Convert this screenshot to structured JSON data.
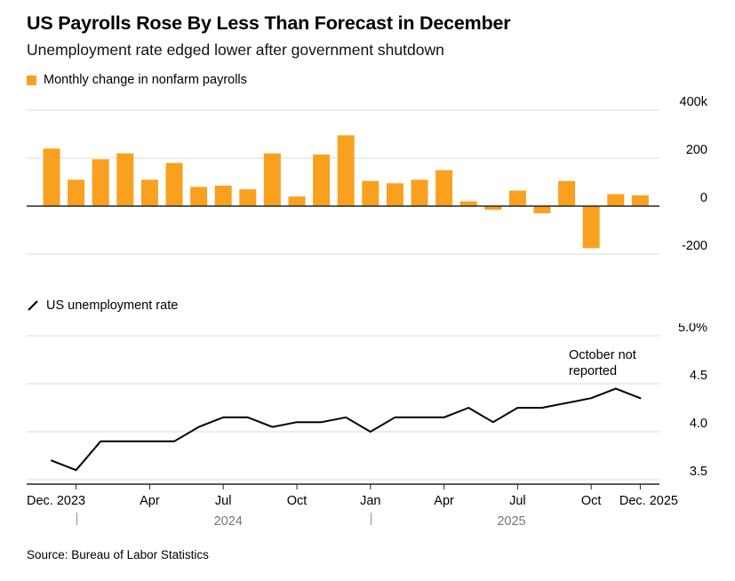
{
  "title": "US Payrolls Rose By Less Than Forecast in December",
  "subtitle": "Unemployment rate edged lower after government shutdown",
  "legend": {
    "payrolls": "Monthly change in nonfarm payrolls",
    "unemployment": "US unemployment rate"
  },
  "annotation": {
    "line1": "October not",
    "line2": "reported"
  },
  "source": "Source: Bureau of Labor Statistics",
  "colors": {
    "bar_orange": "#F9A11E",
    "line_black": "#000000",
    "grid": "#DBDBDB",
    "axis": "#262626",
    "year_gray": "#757575"
  },
  "chart_data": [
    {
      "type": "bar",
      "title": "Monthly change in nonfarm payrolls",
      "unit": "thousands of jobs",
      "categories": [
        "Dec 2023",
        "Jan 2024",
        "Feb 2024",
        "Mar 2024",
        "Apr 2024",
        "May 2024",
        "Jun 2024",
        "Jul 2024",
        "Aug 2024",
        "Sep 2024",
        "Oct 2024",
        "Nov 2024",
        "Dec 2024",
        "Jan 2025",
        "Feb 2025",
        "Mar 2025",
        "Apr 2025",
        "May 2025",
        "Jun 2025",
        "Jul 2025",
        "Aug 2025",
        "Sep 2025",
        "Oct 2025",
        "Nov 2025",
        "Dec 2025"
      ],
      "values": [
        240,
        110,
        195,
        220,
        110,
        180,
        80,
        85,
        70,
        220,
        40,
        215,
        295,
        105,
        95,
        110,
        150,
        20,
        -15,
        65,
        -30,
        105,
        -175,
        50,
        45
      ],
      "yticks": [
        {
          "value": 400,
          "label": "400k"
        },
        {
          "value": 200,
          "label": "200"
        },
        {
          "value": 0,
          "label": "0"
        },
        {
          "value": -200,
          "label": "-200"
        }
      ],
      "ylim": [
        -280,
        460
      ],
      "grid": true,
      "legend_position": "top-left",
      "bar_color": "#F9A11E"
    },
    {
      "type": "line",
      "title": "US unemployment rate",
      "unit": "percent",
      "categories": [
        "Dec 2023",
        "Jan 2024",
        "Feb 2024",
        "Mar 2024",
        "Apr 2024",
        "May 2024",
        "Jun 2024",
        "Jul 2024",
        "Aug 2024",
        "Sep 2024",
        "Oct 2024",
        "Nov 2024",
        "Dec 2024",
        "Jan 2025",
        "Feb 2025",
        "Mar 2025",
        "Apr 2025",
        "May 2025",
        "Jun 2025",
        "Jul 2025",
        "Aug 2025",
        "Sep 2025",
        "Oct 2025",
        "Nov 2025",
        "Dec 2025"
      ],
      "values": [
        3.7,
        3.6,
        3.9,
        3.9,
        3.9,
        3.9,
        4.05,
        4.15,
        4.15,
        4.05,
        4.1,
        4.1,
        4.15,
        4.0,
        4.15,
        4.15,
        4.15,
        4.25,
        4.1,
        4.25,
        4.25,
        4.3,
        4.35,
        4.45,
        4.35
      ],
      "yticks": [
        {
          "value": 5.0,
          "label": "5.0%"
        },
        {
          "value": 4.5,
          "label": "4.5"
        },
        {
          "value": 4.0,
          "label": "4.0"
        },
        {
          "value": 3.5,
          "label": "3.5"
        }
      ],
      "ylim": [
        3.4,
        5.05
      ],
      "grid": true,
      "annotation": "October not reported",
      "line_color": "#000000"
    }
  ],
  "x_axis": {
    "tick_labels": [
      {
        "index": 0,
        "text": "Dec. 2023",
        "align": "left"
      },
      {
        "index": 4,
        "text": "Apr"
      },
      {
        "index": 7,
        "text": "Jul"
      },
      {
        "index": 10,
        "text": "Oct"
      },
      {
        "index": 13,
        "text": "Jan"
      },
      {
        "index": 16,
        "text": "Apr"
      },
      {
        "index": 19,
        "text": "Jul"
      },
      {
        "index": 22,
        "text": "Oct"
      },
      {
        "index": 24,
        "text": "Dec. 2025",
        "align": "right"
      }
    ],
    "year_markers": [
      {
        "index": 1,
        "label": "2024",
        "label_index": 7.2
      },
      {
        "index": 13,
        "label": "2025",
        "label_index": 18.75
      }
    ],
    "axis_tick_indices": [
      1,
      4,
      7,
      10,
      13,
      16,
      19,
      22,
      24
    ]
  }
}
